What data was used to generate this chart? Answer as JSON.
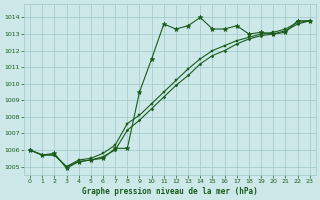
{
  "background_color": "#cce8e8",
  "grid_color": "#a0c8c8",
  "line_color": "#1a5c1a",
  "title": "Graphe pression niveau de la mer (hPa)",
  "xlim": [
    -0.5,
    23.5
  ],
  "ylim": [
    1004.5,
    1014.8
  ],
  "yticks": [
    1005,
    1006,
    1007,
    1008,
    1009,
    1010,
    1011,
    1012,
    1013,
    1014
  ],
  "xticks": [
    0,
    1,
    2,
    3,
    4,
    5,
    6,
    7,
    8,
    9,
    10,
    11,
    12,
    13,
    14,
    15,
    16,
    17,
    18,
    19,
    20,
    21,
    22,
    23
  ],
  "line1_x": [
    0,
    1,
    2,
    3,
    4,
    5,
    6,
    7,
    8,
    9,
    10,
    11,
    12,
    13,
    14,
    15,
    16,
    17,
    18,
    19,
    20,
    21,
    22,
    23
  ],
  "line1_y": [
    1006.0,
    1005.7,
    1005.8,
    1004.9,
    1005.3,
    1005.4,
    1005.5,
    1006.1,
    1006.1,
    1009.5,
    1011.5,
    1013.6,
    1013.3,
    1013.5,
    1014.0,
    1013.3,
    1013.3,
    1013.5,
    1013.0,
    1013.1,
    1013.0,
    1013.1,
    1013.8,
    1013.8
  ],
  "line2_x": [
    0,
    1,
    2,
    3,
    4,
    5,
    6,
    7,
    8,
    9,
    10,
    11,
    12,
    13,
    14,
    15,
    16,
    17,
    18,
    19,
    20,
    21,
    22,
    23
  ],
  "line2_y": [
    1006.0,
    1005.7,
    1005.7,
    1005.0,
    1005.4,
    1005.5,
    1005.8,
    1006.3,
    1007.6,
    1008.1,
    1008.8,
    1009.5,
    1010.2,
    1010.9,
    1011.5,
    1012.0,
    1012.3,
    1012.6,
    1012.8,
    1013.0,
    1013.1,
    1013.3,
    1013.7,
    1013.8
  ],
  "line3_x": [
    0,
    1,
    2,
    3,
    4,
    5,
    6,
    7,
    8,
    9,
    10,
    11,
    12,
    13,
    14,
    15,
    16,
    17,
    18,
    19,
    20,
    21,
    22,
    23
  ],
  "line3_y": [
    1006.0,
    1005.7,
    1005.7,
    1005.0,
    1005.3,
    1005.4,
    1005.6,
    1006.0,
    1007.2,
    1007.8,
    1008.5,
    1009.2,
    1009.9,
    1010.5,
    1011.2,
    1011.7,
    1012.0,
    1012.4,
    1012.7,
    1012.9,
    1013.0,
    1013.2,
    1013.6,
    1013.8
  ]
}
